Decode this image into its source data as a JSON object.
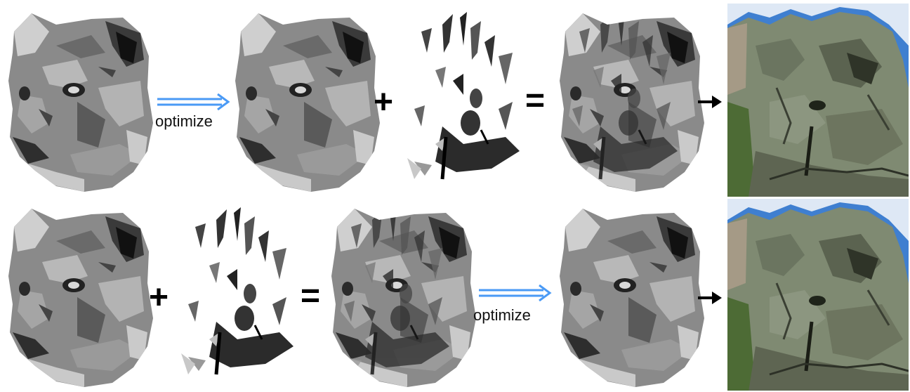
{
  "rows": [
    {
      "steps": [
        "lion-head",
        "optimize-arrow",
        "lion-head-optimized",
        "plus",
        "shadow-layer",
        "equals",
        "lion-head-combined",
        "result-arrow",
        "rock-photo"
      ],
      "optimize_label": "optimize"
    },
    {
      "steps": [
        "lion-head",
        "plus",
        "shadow-layer",
        "equals",
        "lion-head-combined",
        "optimize-arrow",
        "lion-head-optimized",
        "result-arrow",
        "rock-photo"
      ],
      "optimize_label": "optimize"
    }
  ],
  "colors": {
    "optimize_arrow": "#4a9af5",
    "operator": "#000000",
    "sky": "#3f7fd0",
    "rock": "#7f8a72"
  },
  "icons": {
    "plus": "plus-icon",
    "equals": "equals-icon",
    "result_arrow": "arrow-right-icon",
    "optimize_arrow": "double-arrow-right-icon"
  }
}
